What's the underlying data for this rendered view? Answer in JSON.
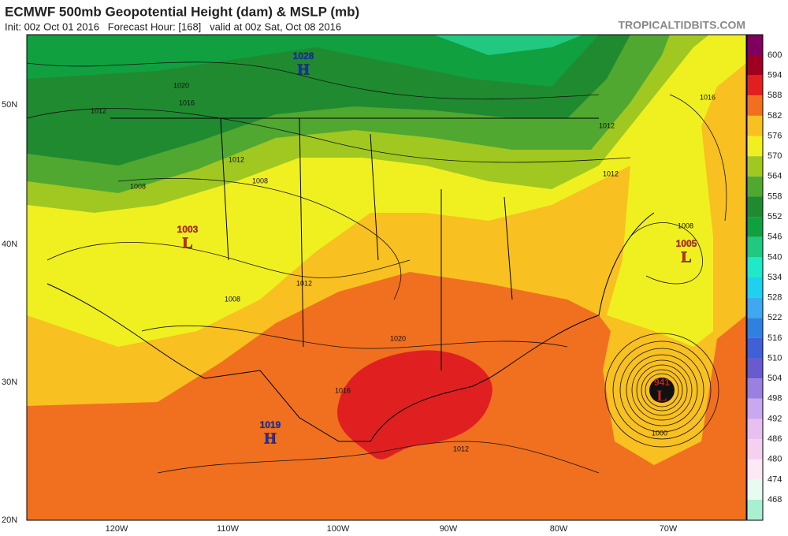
{
  "header": {
    "title": "ECMWF 500mb Geopotential Height (dam) & MSLP (mb)",
    "run_info": "Init: 00z Oct 01 2016   Forecast Hour: [168]   valid at 00z Sat, Oct 08 2016",
    "site": "TROPICALTIDBITS.COM"
  },
  "map": {
    "lat_labels": [
      "50N",
      "40N",
      "30N",
      "20N"
    ],
    "lon_labels": [
      "120W",
      "110W",
      "100W",
      "90W",
      "80W",
      "70W"
    ],
    "pressure_centers": [
      {
        "symbol": "H",
        "value": 1028
      },
      {
        "symbol": "L",
        "value": 1003
      },
      {
        "symbol": "L",
        "value": 1005
      },
      {
        "symbol": "H",
        "value": 1019
      },
      {
        "symbol": "L",
        "value": 941
      }
    ],
    "isobar_labels": [
      1020,
      1016,
      1012,
      1012,
      1008,
      1008,
      1012,
      1008,
      1020,
      1016,
      1012,
      1000,
      1016,
      1008,
      1012,
      1012
    ]
  },
  "colorbar": {
    "ticks": [
      600,
      594,
      588,
      582,
      576,
      570,
      564,
      558,
      552,
      546,
      540,
      534,
      528,
      522,
      516,
      510,
      504,
      498,
      492,
      486,
      480,
      474,
      468
    ],
    "colors": [
      "#800060",
      "#a00020",
      "#e02020",
      "#f07020",
      "#f8c020",
      "#f0f020",
      "#a0c820",
      "#50a830",
      "#208a30",
      "#10a040",
      "#20c880",
      "#20e8c8",
      "#20d0f0",
      "#40a8f0",
      "#3080e0",
      "#4060d8",
      "#6a5ad0",
      "#9a80e0",
      "#c8a8f0",
      "#e8c0f0",
      "#f5d0f0",
      "#fde8f5",
      "#e8fbf0",
      "#a8f0d0"
    ]
  }
}
